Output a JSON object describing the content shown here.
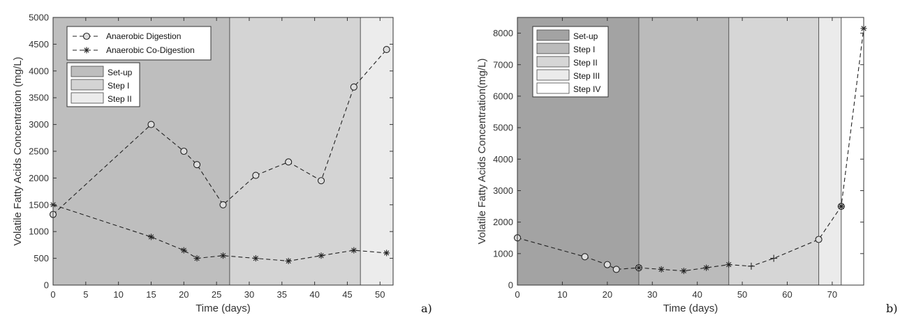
{
  "chart_data": [
    {
      "type": "line",
      "panel_label": "a)",
      "xlabel": "Time (days)",
      "ylabel": "Volatile Fatty Acids Concentration (mg/L)",
      "xlim": [
        0,
        52
      ],
      "ylim": [
        0,
        5000
      ],
      "xticks": [
        0,
        5,
        10,
        15,
        20,
        25,
        30,
        35,
        40,
        45,
        50
      ],
      "yticks": [
        0,
        500,
        1000,
        1500,
        2000,
        2500,
        3000,
        3500,
        4000,
        4500,
        5000
      ],
      "grid": false,
      "legend_position": "top-left",
      "series": [
        {
          "name": "Anaerobic Digestion",
          "marker": "circle",
          "line": "dashed",
          "x": [
            0,
            15,
            20,
            22,
            26,
            31,
            36,
            41,
            46,
            51
          ],
          "y": [
            1320,
            3000,
            2500,
            2250,
            1500,
            2050,
            2300,
            1950,
            3700,
            4400
          ]
        },
        {
          "name": "Anaerobic Co-Digestion",
          "marker": "asterisk",
          "line": "dashed",
          "x": [
            0,
            15,
            20,
            22,
            26,
            31,
            36,
            41,
            46,
            51
          ],
          "y": [
            1500,
            900,
            650,
            500,
            550,
            500,
            450,
            550,
            650,
            600
          ]
        }
      ],
      "phases": [
        {
          "name": "Set-up",
          "start": 0,
          "end": 27,
          "color": "#bebebe"
        },
        {
          "name": "Step I",
          "start": 27,
          "end": 47,
          "color": "#d4d4d4"
        },
        {
          "name": "Step II",
          "start": 47,
          "end": 52,
          "color": "#ececec"
        }
      ]
    },
    {
      "type": "line",
      "panel_label": "b)",
      "xlabel": "Time (days)",
      "ylabel": "Volatile Fatty Acids Concentration(mg/L)",
      "xlim": [
        0,
        77
      ],
      "ylim": [
        0,
        8500
      ],
      "xticks": [
        0,
        10,
        20,
        30,
        40,
        50,
        60,
        70
      ],
      "yticks": [
        0,
        1000,
        2000,
        3000,
        4000,
        5000,
        6000,
        7000,
        8000
      ],
      "grid": false,
      "legend_position": "top-left",
      "series": [
        {
          "marker": "mixed",
          "line": "dashed",
          "x": [
            0,
            15,
            20,
            22,
            27,
            32,
            37,
            42,
            47,
            52,
            57,
            67,
            72,
            77
          ],
          "y": [
            1500,
            900,
            650,
            500,
            550,
            500,
            450,
            550,
            650,
            600,
            850,
            1450,
            2500,
            8150
          ],
          "markers": [
            "circle",
            "circle",
            "circle",
            "circle",
            "circle-asterisk",
            "asterisk",
            "asterisk",
            "asterisk",
            "asterisk",
            "plus",
            "plus",
            "circle",
            "circle-asterisk",
            "asterisk"
          ]
        }
      ],
      "phases": [
        {
          "name": "Set-up",
          "start": 0,
          "end": 27,
          "color": "#a3a3a3"
        },
        {
          "name": "Step I",
          "start": 27,
          "end": 47,
          "color": "#bbbbbb"
        },
        {
          "name": "Step II",
          "start": 47,
          "end": 67,
          "color": "#d6d6d6"
        },
        {
          "name": "Step III",
          "start": 67,
          "end": 72,
          "color": "#ebebeb"
        },
        {
          "name": "Step IV",
          "start": 72,
          "end": 77,
          "color": "#ffffff"
        }
      ]
    }
  ]
}
